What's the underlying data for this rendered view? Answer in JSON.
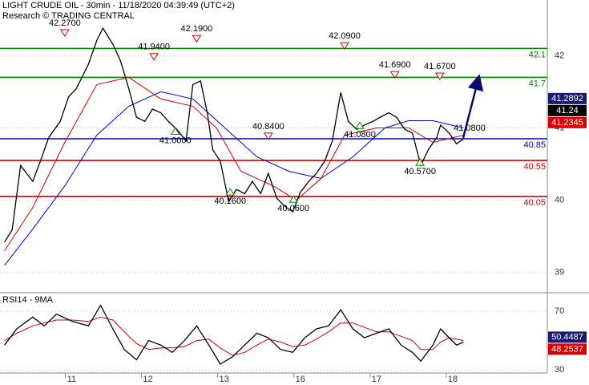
{
  "chart_data": [
    {
      "type": "line",
      "title": "LIGHT CRUDE OIL - 30min - 11/18/2020 04:39:49 (UTC+2)",
      "subtitle": "Research © TRADING CENTRAL",
      "xlim": [
        0.06,
        7.24
      ],
      "xticks": [
        {
          "value": 1,
          "label": "11"
        },
        {
          "value": 2,
          "label": "12"
        },
        {
          "value": 3,
          "label": "13"
        },
        {
          "value": 4,
          "label": "16"
        },
        {
          "value": 5,
          "label": "17"
        },
        {
          "value": 6,
          "label": "18"
        }
      ],
      "ylim": [
        38.73,
        42.77
      ],
      "yticks": [
        39,
        40,
        41,
        42
      ],
      "grid": true,
      "series": [
        {
          "color": "#000000",
          "x": [
            0.12,
            0.22,
            0.33,
            0.49,
            0.59,
            0.7,
            0.85,
            0.96,
            1.06,
            1.22,
            1.33,
            1.41,
            1.54,
            1.64,
            1.75,
            1.85,
            1.96,
            2.06,
            2.17,
            2.27,
            2.38,
            2.5,
            2.59,
            2.69,
            2.78,
            2.85,
            2.95,
            3.06,
            3.16,
            3.27,
            3.37,
            3.48,
            3.58,
            3.69,
            3.79,
            3.9,
            4.0,
            4.11,
            4.21,
            4.32,
            4.42,
            4.53,
            4.63,
            4.74,
            4.84,
            4.95,
            5.05,
            5.16,
            5.26,
            5.37,
            5.47,
            5.58,
            5.68,
            5.79,
            5.84,
            5.95,
            6.05,
            6.14
          ],
          "values": [
            39.42,
            39.59,
            40.48,
            40.26,
            40.54,
            40.87,
            41.09,
            41.43,
            41.54,
            41.88,
            42.21,
            42.38,
            42.16,
            41.93,
            41.54,
            41.15,
            41.09,
            41.26,
            41.21,
            41.09,
            40.98,
            40.82,
            41.6,
            41.65,
            41.21,
            40.7,
            40.54,
            39.98,
            40.15,
            40.09,
            40.26,
            40.09,
            40.37,
            40.03,
            39.92,
            39.84,
            40.11,
            40.26,
            40.37,
            40.54,
            40.82,
            41.49,
            41.09,
            40.98,
            41.04,
            41.09,
            41.15,
            41.21,
            41.15,
            40.98,
            40.93,
            40.48,
            40.7,
            40.87,
            41.04,
            40.93,
            40.78,
            40.85
          ]
        },
        {
          "color": "#cc0000",
          "x": [
            0.12,
            0.49,
            0.91,
            1.33,
            1.75,
            2.17,
            2.59,
            2.9,
            3.22,
            3.64,
            3.95,
            4.27,
            4.58,
            5.0,
            5.42,
            5.74,
            6.14
          ],
          "values": [
            39.3,
            39.9,
            40.8,
            41.6,
            41.7,
            41.4,
            41.3,
            41.0,
            40.4,
            40.2,
            40.0,
            40.3,
            40.9,
            41.0,
            41.0,
            40.8,
            40.9
          ]
        },
        {
          "color": "#0000cc",
          "x": [
            0.12,
            0.49,
            0.91,
            1.33,
            1.75,
            2.17,
            2.59,
            3.01,
            3.43,
            3.85,
            4.27,
            4.69,
            5.11,
            5.42,
            5.74,
            6.14
          ],
          "values": [
            39.1,
            39.6,
            40.2,
            40.9,
            41.3,
            41.5,
            41.4,
            41.0,
            40.6,
            40.4,
            40.3,
            40.6,
            41.0,
            41.1,
            41.1,
            41.0
          ]
        }
      ],
      "levels": [
        {
          "value": 42.1,
          "color": "#008000"
        },
        {
          "value": 41.7,
          "color": "#008000"
        },
        {
          "value": 40.85,
          "color": "#0000cc"
        },
        {
          "value": 40.55,
          "color": "#cc0000"
        },
        {
          "value": 40.05,
          "color": "#cc0000"
        }
      ],
      "annotations": [
        {
          "x": 0.91,
          "value": 42.27,
          "label": "42.2700",
          "dir": "down"
        },
        {
          "x": 2.08,
          "value": 41.94,
          "label": "41.9400",
          "dir": "down"
        },
        {
          "x": 2.64,
          "value": 42.19,
          "label": "42.1900",
          "dir": "down"
        },
        {
          "x": 2.36,
          "value": 41.0,
          "label": "41.0000",
          "dir": "up"
        },
        {
          "x": 3.58,
          "value": 40.84,
          "label": "40.8400",
          "dir": "down"
        },
        {
          "x": 3.08,
          "value": 40.16,
          "label": "40.1600",
          "dir": "up"
        },
        {
          "x": 3.91,
          "value": 40.06,
          "label": "40.0600",
          "dir": "up"
        },
        {
          "x": 4.58,
          "value": 42.09,
          "label": "42.0900",
          "dir": "down"
        },
        {
          "x": 5.24,
          "value": 41.69,
          "label": "41.6900",
          "dir": "down"
        },
        {
          "x": 4.78,
          "value": 41.08,
          "label": "41.0800",
          "dir": "up"
        },
        {
          "x": 5.83,
          "value": 41.67,
          "label": "41.6700",
          "dir": "down"
        },
        {
          "x": 5.57,
          "value": 40.57,
          "label": "40.5700",
          "dir": "up"
        },
        {
          "x": 6.22,
          "value": 41.08,
          "label": "41.0800",
          "dir": "none"
        }
      ],
      "last_values": [
        {
          "value": 41.2892,
          "color": "#1a1a6e"
        },
        {
          "value": 41.24,
          "color": "#000000"
        },
        {
          "value": 41.2345,
          "color": "#dd0000"
        }
      ]
    },
    {
      "type": "line",
      "title": "RSI14 - 9MA",
      "ylim": [
        28,
        82
      ],
      "yticks": [
        30,
        70
      ],
      "grid": true,
      "series": [
        {
          "color": "#000000",
          "x": [
            0.12,
            0.28,
            0.49,
            0.64,
            0.8,
            1.01,
            1.22,
            1.38,
            1.54,
            1.69,
            1.85,
            2.01,
            2.17,
            2.32,
            2.48,
            2.64,
            2.8,
            2.95,
            3.11,
            3.27,
            3.43,
            3.58,
            3.74,
            3.9,
            4.06,
            4.21,
            4.37,
            4.53,
            4.69,
            4.84,
            5.0,
            5.16,
            5.32,
            5.47,
            5.58,
            5.74,
            5.84,
            5.95,
            6.05,
            6.14
          ],
          "values": [
            47,
            58,
            66,
            60,
            68,
            63,
            60,
            74,
            58,
            44,
            37,
            50,
            47,
            42,
            50,
            60,
            47,
            34,
            39,
            47,
            55,
            52,
            44,
            42,
            52,
            58,
            60,
            71,
            58,
            52,
            55,
            58,
            47,
            42,
            36,
            47,
            58,
            52,
            47,
            49
          ]
        },
        {
          "color": "#cc0000",
          "x": [
            0.12,
            0.28,
            0.49,
            0.64,
            0.8,
            1.01,
            1.22,
            1.38,
            1.54,
            1.69,
            1.85,
            2.01,
            2.17,
            2.32,
            2.48,
            2.64,
            2.8,
            2.95,
            3.11,
            3.27,
            3.43,
            3.58,
            3.74,
            3.9,
            4.06,
            4.21,
            4.37,
            4.53,
            4.69,
            4.84,
            5.0,
            5.16,
            5.32,
            5.47,
            5.58,
            5.74,
            5.84,
            5.95,
            6.05,
            6.14
          ],
          "values": [
            50,
            55,
            60,
            62,
            64,
            64,
            63,
            66,
            64,
            56,
            48,
            44,
            45,
            45,
            46,
            50,
            51,
            45,
            40,
            42,
            47,
            51,
            49,
            46,
            47,
            51,
            56,
            62,
            62,
            59,
            56,
            56,
            53,
            50,
            44,
            44,
            49,
            52,
            51,
            50
          ]
        }
      ],
      "last_values": [
        {
          "value": 50.4487,
          "color": "#1a1a6e"
        },
        {
          "value": 48.2537,
          "color": "#dd0000"
        }
      ]
    }
  ]
}
